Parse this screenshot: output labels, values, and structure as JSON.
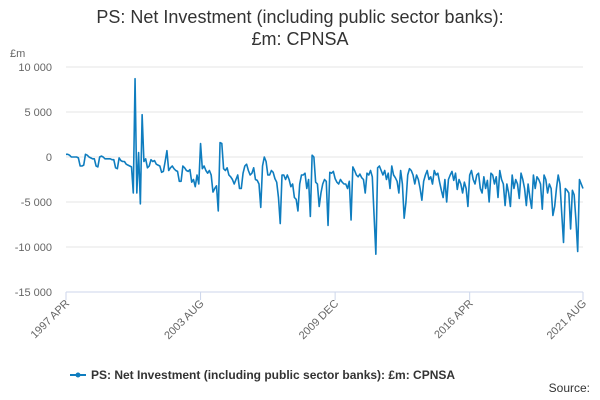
{
  "chart_data": {
    "type": "line",
    "title": "PS: Net Investment (including public sector banks): £m: CPNSA",
    "y_unit": "£m",
    "source": "Source:",
    "categories": [
      "1997 APR",
      "1997 MAY",
      "1997 JUN",
      "1997 JUL",
      "1997 AUG",
      "1997 SEP",
      "1997 OCT",
      "1997 NOV",
      "1997 DEC",
      "1998 JAN",
      "1998 FEB",
      "1998 MAR",
      "1998 APR",
      "1998 MAY",
      "1998 JUN",
      "1998 JUL",
      "1998 AUG",
      "1998 SEP",
      "1998 OCT",
      "1998 NOV",
      "1998 DEC",
      "1999 JAN",
      "1999 FEB",
      "1999 MAR",
      "1999 APR",
      "1999 MAY",
      "1999 JUN",
      "1999 JUL",
      "1999 AUG",
      "1999 SEP",
      "1999 OCT",
      "1999 NOV",
      "1999 DEC",
      "2000 JAN",
      "2000 FEB",
      "2000 MAR",
      "2000 APR",
      "2000 MAY",
      "2000 JUN",
      "2000 JUL",
      "2000 AUG",
      "2000 SEP",
      "2000 OCT",
      "2000 NOV",
      "2000 DEC",
      "2001 JAN",
      "2001 FEB",
      "2001 MAR",
      "2001 APR",
      "2001 MAY",
      "2001 JUN",
      "2001 JUL",
      "2001 AUG",
      "2001 SEP",
      "2001 OCT",
      "2001 NOV",
      "2001 DEC",
      "2002 JAN",
      "2002 FEB",
      "2002 MAR",
      "2002 APR",
      "2002 MAY",
      "2002 JUN",
      "2002 JUL",
      "2002 AUG",
      "2002 SEP",
      "2002 OCT",
      "2002 NOV",
      "2002 DEC",
      "2003 JAN",
      "2003 FEB",
      "2003 MAR",
      "2003 APR",
      "2003 MAY",
      "2003 JUN",
      "2003 JUL",
      "2003 AUG",
      "2003 SEP",
      "2003 OCT",
      "2003 NOV",
      "2003 DEC",
      "2004 JAN",
      "2004 FEB",
      "2004 MAR",
      "2004 APR",
      "2004 MAY",
      "2004 JUN",
      "2004 JUL",
      "2004 AUG",
      "2004 SEP",
      "2004 OCT",
      "2004 NOV",
      "2004 DEC",
      "2005 JAN",
      "2005 FEB",
      "2005 MAR",
      "2005 APR",
      "2005 MAY",
      "2005 JUN",
      "2005 JUL",
      "2005 AUG",
      "2005 SEP",
      "2005 OCT",
      "2005 NOV",
      "2005 DEC",
      "2006 JAN",
      "2006 FEB",
      "2006 MAR",
      "2006 APR",
      "2006 MAY",
      "2006 JUN",
      "2006 JUL",
      "2006 AUG",
      "2006 SEP",
      "2006 OCT",
      "2006 NOV",
      "2006 DEC",
      "2007 JAN",
      "2007 FEB",
      "2007 MAR",
      "2007 APR",
      "2007 MAY",
      "2007 JUN",
      "2007 JUL",
      "2007 AUG",
      "2007 SEP",
      "2007 OCT",
      "2007 NOV",
      "2007 DEC",
      "2008 JAN",
      "2008 FEB",
      "2008 MAR",
      "2008 APR",
      "2008 MAY",
      "2008 JUN",
      "2008 JUL",
      "2008 AUG",
      "2008 SEP",
      "2008 OCT",
      "2008 NOV",
      "2008 DEC",
      "2009 JAN",
      "2009 FEB",
      "2009 MAR",
      "2009 APR",
      "2009 MAY",
      "2009 JUN",
      "2009 JUL",
      "2009 AUG",
      "2009 SEP",
      "2009 OCT",
      "2009 NOV",
      "2009 DEC",
      "2010 JAN",
      "2010 FEB",
      "2010 MAR",
      "2010 APR",
      "2010 MAY",
      "2010 JUN",
      "2010 JUL",
      "2010 AUG",
      "2010 SEP",
      "2010 OCT",
      "2010 NOV",
      "2010 DEC",
      "2011 JAN",
      "2011 FEB",
      "2011 MAR",
      "2011 APR",
      "2011 MAY",
      "2011 JUN",
      "2011 JUL",
      "2011 AUG",
      "2011 SEP",
      "2011 OCT",
      "2011 NOV",
      "2011 DEC",
      "2012 JAN",
      "2012 FEB",
      "2012 MAR",
      "2012 APR",
      "2012 MAY",
      "2012 JUN",
      "2012 JUL",
      "2012 AUG",
      "2012 SEP",
      "2012 OCT",
      "2012 NOV",
      "2012 DEC",
      "2013 JAN",
      "2013 FEB",
      "2013 MAR",
      "2013 APR",
      "2013 MAY",
      "2013 JUN",
      "2013 JUL",
      "2013 AUG",
      "2013 SEP",
      "2013 OCT",
      "2013 NOV",
      "2013 DEC",
      "2014 JAN",
      "2014 FEB",
      "2014 MAR",
      "2014 APR",
      "2014 MAY",
      "2014 JUN",
      "2014 JUL",
      "2014 AUG",
      "2014 SEP",
      "2014 OCT",
      "2014 NOV",
      "2014 DEC",
      "2015 JAN",
      "2015 FEB",
      "2015 MAR",
      "2015 APR",
      "2015 MAY",
      "2015 JUN",
      "2015 JUL",
      "2015 AUG",
      "2015 SEP",
      "2015 OCT",
      "2015 NOV",
      "2015 DEC",
      "2016 JAN",
      "2016 FEB",
      "2016 MAR",
      "2016 APR",
      "2016 MAY",
      "2016 JUN",
      "2016 JUL",
      "2016 AUG",
      "2016 SEP",
      "2016 OCT",
      "2016 NOV",
      "2016 DEC",
      "2017 JAN",
      "2017 FEB",
      "2017 MAR",
      "2017 APR",
      "2017 MAY",
      "2017 JUN",
      "2017 JUL",
      "2017 AUG",
      "2017 SEP",
      "2017 OCT",
      "2017 NOV",
      "2017 DEC",
      "2018 JAN",
      "2018 FEB",
      "2018 MAR",
      "2018 APR",
      "2018 MAY",
      "2018 JUN",
      "2018 JUL",
      "2018 AUG",
      "2018 SEP",
      "2018 OCT",
      "2018 NOV",
      "2018 DEC",
      "2019 JAN",
      "2019 FEB",
      "2019 MAR",
      "2019 APR",
      "2019 MAY",
      "2019 JUN",
      "2019 JUL",
      "2019 AUG",
      "2019 SEP",
      "2019 OCT",
      "2019 NOV",
      "2019 DEC",
      "2020 JAN",
      "2020 FEB",
      "2020 MAR",
      "2020 APR",
      "2020 MAY",
      "2020 JUN",
      "2020 JUL",
      "2020 AUG",
      "2020 SEP",
      "2020 OCT",
      "2020 NOV",
      "2020 DEC",
      "2021 JAN",
      "2021 FEB",
      "2021 MAR",
      "2021 APR",
      "2021 MAY",
      "2021 JUN",
      "2021 JUL",
      "2021 AUG"
    ],
    "series": [
      {
        "name": "PS: Net Investment (including public sector banks): £m: CPNSA",
        "color": "#0f7dbf",
        "values": [
          300,
          300,
          200,
          0,
          0,
          0,
          0,
          -100,
          -1000,
          -1000,
          -900,
          300,
          200,
          0,
          -100,
          -200,
          -200,
          -1000,
          -1100,
          0,
          100,
          0,
          -200,
          -200,
          -200,
          -200,
          -300,
          -300,
          -1200,
          -1300,
          -100,
          -400,
          -500,
          -500,
          -800,
          -900,
          -1000,
          -1100,
          -4000,
          8700,
          -4000,
          500,
          -5200,
          4700,
          -500,
          -200,
          -1200,
          -1000,
          -300,
          -500,
          -400,
          -800,
          -900,
          -1000,
          -1700,
          -1600,
          -500,
          700,
          -1500,
          -1200,
          -1000,
          -1300,
          -1500,
          -1600,
          -2700,
          -2700,
          -1000,
          -1200,
          -1500,
          -1600,
          -1400,
          -2800,
          -2500,
          -3300,
          -2000,
          -3000,
          1500,
          -1300,
          -1000,
          -1500,
          -1800,
          -1500,
          -2000,
          -3900,
          -3500,
          -3200,
          -6000,
          1600,
          1500,
          -1300,
          -1500,
          -1200,
          -2000,
          -2200,
          -2500,
          -3000,
          -2500,
          -2000,
          -3500,
          -3500,
          -1800,
          -1000,
          -800,
          -1500,
          -2000,
          -1800,
          -1200,
          -2500,
          -2600,
          -3000,
          -5600,
          -1000,
          0,
          -500,
          -2000,
          -2000,
          -1500,
          -1700,
          -2400,
          -2800,
          -4500,
          -7400,
          -2000,
          -2000,
          -2500,
          -2000,
          -2500,
          -3300,
          -3000,
          -4500,
          -4700,
          -6000,
          -3000,
          -2000,
          -2000,
          -1800,
          -3500,
          -2500,
          -6600,
          200,
          0,
          -2800,
          -3000,
          -5500,
          -4000,
          -3000,
          -2500,
          -2700,
          -7600,
          -1700,
          -1800,
          -1600,
          -2400,
          -2800,
          -3000,
          -2500,
          -2800,
          -3000,
          -3000,
          -3500,
          -2700,
          -7000,
          -1100,
          -1500,
          -2000,
          -2200,
          -1900,
          -2300,
          -2500,
          -4000,
          -1800,
          -2000,
          -1500,
          -2200,
          -6500,
          -10800,
          -1200,
          -1000,
          -1500,
          -2000,
          -1500,
          -2500,
          -1800,
          -3500,
          -1000,
          -2000,
          -2300,
          -2700,
          -4000,
          -1500,
          -3000,
          -6800,
          -5000,
          -2000,
          -1300,
          -1500,
          -2000,
          -3000,
          -2000,
          -2500,
          -3500,
          -4800,
          -2700,
          -2000,
          -1500,
          -2500,
          -2200,
          -3000,
          -1500,
          -2000,
          -1800,
          -2800,
          -3700,
          -4500,
          -2500,
          -5000,
          -2500,
          -2000,
          -1600,
          -2600,
          -1800,
          -3600,
          -2500,
          -3000,
          -4000,
          -2800,
          -3500,
          -5500,
          -2000,
          -1500,
          -2500,
          -3000,
          -2000,
          -1800,
          -3500,
          -4000,
          -2200,
          -3500,
          -2600,
          -5000,
          -1800,
          -2000,
          -3000,
          -2200,
          -4500,
          -1500,
          -2500,
          -3000,
          -5400,
          -3000,
          -4000,
          -5500,
          -2000,
          -3500,
          -2500,
          -3000,
          -4600,
          -1800,
          -2500,
          -3500,
          -5400,
          -3000,
          -4500,
          -5700,
          -2000,
          -3500,
          -2200,
          -2500,
          -3000,
          -5800,
          -2000,
          -2500,
          -4000,
          -3000,
          -3500,
          -6500,
          -5500,
          -3500,
          -2000,
          -3000,
          -6300,
          -9500,
          -3500,
          -3700,
          -4000,
          -8000,
          -3700,
          -4200,
          -7000,
          -10500,
          -2500,
          -3000,
          -3500
        ]
      }
    ],
    "xticks": [
      "1997 APR",
      "2003 AUG",
      "2009 DEC",
      "2016 APR",
      "2021 AUG"
    ],
    "ylim": [
      -15000,
      10000
    ],
    "yticks": [
      {
        "value": -15000,
        "label": "-15 000"
      },
      {
        "value": -10000,
        "label": "-10 000"
      },
      {
        "value": -5000,
        "label": "-5 000"
      },
      0,
      {
        "value": 5000,
        "label": "5 000"
      },
      {
        "value": 10000,
        "label": "10 000"
      }
    ],
    "grid": true
  }
}
